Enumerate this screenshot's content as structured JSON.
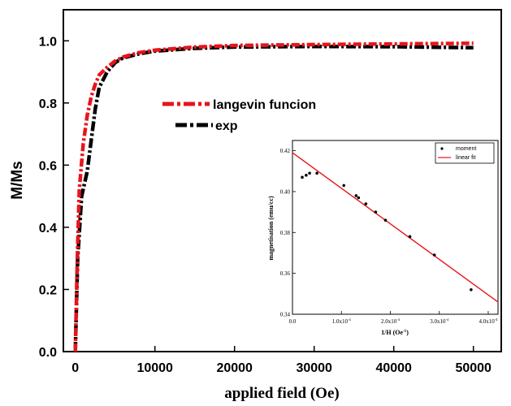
{
  "chart_data": [
    {
      "type": "line",
      "xlabel": "applied field (Oe)",
      "ylabel": "M/Ms",
      "xlim": [
        -1500,
        53500
      ],
      "ylim": [
        0.0,
        1.1
      ],
      "xticks": [
        0,
        10000,
        20000,
        30000,
        40000,
        50000
      ],
      "yticks": [
        0.0,
        0.2,
        0.4,
        0.6,
        0.8,
        1.0
      ],
      "xtick_labels": [
        "0",
        "10000",
        "20000",
        "30000",
        "40000",
        "50000"
      ],
      "ytick_labels": [
        "0.0",
        "0.2",
        "0.4",
        "0.6",
        "0.8",
        "1.0"
      ],
      "legend_position": "upper-middle",
      "series": [
        {
          "name": "langevin funcion",
          "color": "#e8141b",
          "style": "dash-dot",
          "x": [
            0,
            250,
            500,
            1000,
            1500,
            2000,
            2500,
            3000,
            4000,
            5000,
            6000,
            8000,
            10000,
            15000,
            20000,
            30000,
            40000,
            50000
          ],
          "y": [
            0.0,
            0.3,
            0.52,
            0.67,
            0.76,
            0.82,
            0.86,
            0.89,
            0.915,
            0.935,
            0.948,
            0.962,
            0.97,
            0.98,
            0.985,
            0.988,
            0.99,
            0.992
          ]
        },
        {
          "name": "exp",
          "color": "#000000",
          "style": "dash-dot",
          "x": [
            0,
            300,
            800,
            1500,
            2000,
            2500,
            3000,
            4000,
            5000,
            6000,
            8000,
            10000,
            15000,
            20000,
            30000,
            40000,
            50000
          ],
          "y": [
            0.0,
            0.3,
            0.5,
            0.58,
            0.68,
            0.78,
            0.85,
            0.9,
            0.93,
            0.945,
            0.958,
            0.967,
            0.976,
            0.98,
            0.982,
            0.981,
            0.978
          ]
        }
      ]
    },
    {
      "type": "scatter",
      "xlabel": "1/H (Oe",
      "xlabel_sup": "-1",
      "xlabel_end": ")",
      "ylabel": "magnetisation (emu/cc)",
      "xlim": [
        0.0,
        0.00042
      ],
      "ylim": [
        0.34,
        0.425
      ],
      "xticks": [
        0.0,
        0.0001,
        0.0002,
        0.0003,
        0.0004
      ],
      "yticks": [
        0.34,
        0.36,
        0.38,
        0.4,
        0.42
      ],
      "xtick_labels": [
        "0.0",
        "1.0x10",
        "2.0x10",
        "3.0x10",
        "4.0x10"
      ],
      "xtick_sup": [
        "",
        "-4",
        "-4",
        "-4",
        "-4"
      ],
      "ytick_labels": [
        "0.34",
        "0.36",
        "0.38",
        "0.40",
        "0.42"
      ],
      "legend_position": "top-right",
      "series": [
        {
          "name": "moment",
          "color": "#000000",
          "x": [
            2e-05,
            2.8e-05,
            3.5e-05,
            5e-05,
            0.000105,
            0.00013,
            0.000135,
            0.00015,
            0.00017,
            0.00019,
            0.00024,
            0.00029,
            0.000365
          ],
          "y": [
            0.407,
            0.408,
            0.409,
            0.409,
            0.403,
            0.398,
            0.397,
            0.394,
            0.39,
            0.386,
            0.378,
            0.369,
            0.352
          ]
        },
        {
          "name": "linear fit",
          "color": "#e8141b",
          "x": [
            0.0,
            0.00042
          ],
          "y": [
            0.419,
            0.346
          ]
        }
      ]
    }
  ]
}
